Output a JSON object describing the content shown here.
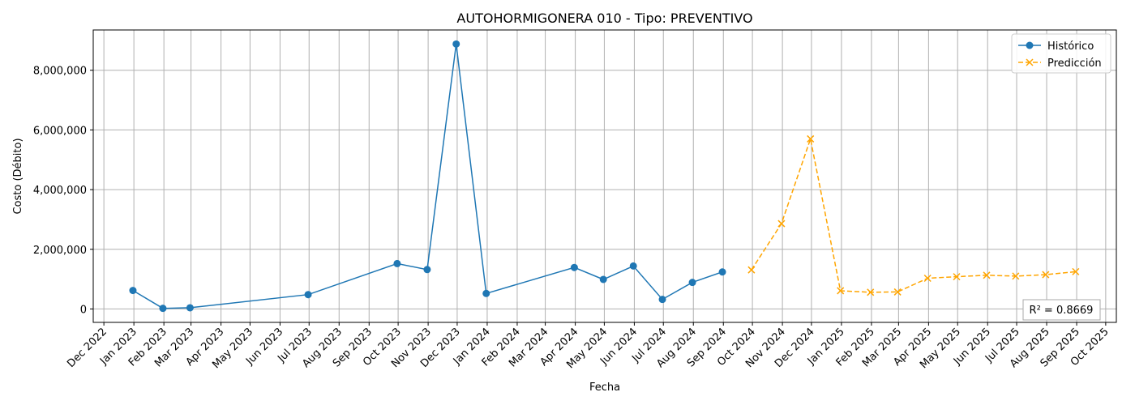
{
  "chart_data": {
    "type": "line",
    "title": "AUTOHORMIGONERA 010 - Tipo: PREVENTIVO",
    "xlabel": "Fecha",
    "ylabel": "Costo (Débito)",
    "x_range": [
      "2022-11-20",
      "2025-10-12"
    ],
    "ylim": [
      -450000,
      9350000
    ],
    "grid": true,
    "legend_position": "top-right",
    "x_ticks": [
      {
        "date": "2022-12-01",
        "label": "Dec 2022"
      },
      {
        "date": "2023-01-01",
        "label": "Jan 2023"
      },
      {
        "date": "2023-02-01",
        "label": "Feb 2023"
      },
      {
        "date": "2023-03-01",
        "label": "Mar 2023"
      },
      {
        "date": "2023-04-01",
        "label": "Apr 2023"
      },
      {
        "date": "2023-05-01",
        "label": "May 2023"
      },
      {
        "date": "2023-06-01",
        "label": "Jun 2023"
      },
      {
        "date": "2023-07-01",
        "label": "Jul 2023"
      },
      {
        "date": "2023-08-01",
        "label": "Aug 2023"
      },
      {
        "date": "2023-09-01",
        "label": "Sep 2023"
      },
      {
        "date": "2023-10-01",
        "label": "Oct 2023"
      },
      {
        "date": "2023-11-01",
        "label": "Nov 2023"
      },
      {
        "date": "2023-12-01",
        "label": "Dec 2023"
      },
      {
        "date": "2024-01-01",
        "label": "Jan 2024"
      },
      {
        "date": "2024-02-01",
        "label": "Feb 2024"
      },
      {
        "date": "2024-03-01",
        "label": "Mar 2024"
      },
      {
        "date": "2024-04-01",
        "label": "Apr 2024"
      },
      {
        "date": "2024-05-01",
        "label": "May 2024"
      },
      {
        "date": "2024-06-01",
        "label": "Jun 2024"
      },
      {
        "date": "2024-07-01",
        "label": "Jul 2024"
      },
      {
        "date": "2024-08-01",
        "label": "Aug 2024"
      },
      {
        "date": "2024-09-01",
        "label": "Sep 2024"
      },
      {
        "date": "2024-10-01",
        "label": "Oct 2024"
      },
      {
        "date": "2024-11-01",
        "label": "Nov 2024"
      },
      {
        "date": "2024-12-01",
        "label": "Dec 2024"
      },
      {
        "date": "2025-01-01",
        "label": "Jan 2025"
      },
      {
        "date": "2025-02-01",
        "label": "Feb 2025"
      },
      {
        "date": "2025-03-01",
        "label": "Mar 2025"
      },
      {
        "date": "2025-04-01",
        "label": "Apr 2025"
      },
      {
        "date": "2025-05-01",
        "label": "May 2025"
      },
      {
        "date": "2025-06-01",
        "label": "Jun 2025"
      },
      {
        "date": "2025-07-01",
        "label": "Jul 2025"
      },
      {
        "date": "2025-08-01",
        "label": "Aug 2025"
      },
      {
        "date": "2025-09-01",
        "label": "Sep 2025"
      },
      {
        "date": "2025-10-01",
        "label": "Oct 2025"
      }
    ],
    "y_ticks": [
      {
        "value": 0,
        "label": "0"
      },
      {
        "value": 2000000,
        "label": "2,000,000"
      },
      {
        "value": 4000000,
        "label": "4,000,000"
      },
      {
        "value": 6000000,
        "label": "6,000,000"
      },
      {
        "value": 8000000,
        "label": "8,000,000"
      }
    ],
    "series": [
      {
        "name": "Histórico",
        "color": "#1f77b4",
        "marker": "circle",
        "line_style": "solid",
        "points": [
          {
            "x": "2022-12-31",
            "y": 620000
          },
          {
            "x": "2023-01-31",
            "y": 20000
          },
          {
            "x": "2023-02-28",
            "y": 40000
          },
          {
            "x": "2023-06-30",
            "y": 480000
          },
          {
            "x": "2023-09-30",
            "y": 1520000
          },
          {
            "x": "2023-10-31",
            "y": 1320000
          },
          {
            "x": "2023-11-30",
            "y": 8880000
          },
          {
            "x": "2023-12-31",
            "y": 520000
          },
          {
            "x": "2024-03-31",
            "y": 1390000
          },
          {
            "x": "2024-04-30",
            "y": 990000
          },
          {
            "x": "2024-05-31",
            "y": 1440000
          },
          {
            "x": "2024-06-30",
            "y": 320000
          },
          {
            "x": "2024-07-31",
            "y": 890000
          },
          {
            "x": "2024-08-31",
            "y": 1240000
          }
        ]
      },
      {
        "name": "Predicción",
        "color": "#ffa500",
        "marker": "x",
        "line_style": "dashed",
        "points": [
          {
            "x": "2024-09-30",
            "y": 1310000
          },
          {
            "x": "2024-10-31",
            "y": 2860000
          },
          {
            "x": "2024-11-30",
            "y": 5700000
          },
          {
            "x": "2024-12-31",
            "y": 610000
          },
          {
            "x": "2025-01-31",
            "y": 560000
          },
          {
            "x": "2025-02-28",
            "y": 570000
          },
          {
            "x": "2025-03-31",
            "y": 1030000
          },
          {
            "x": "2025-04-30",
            "y": 1080000
          },
          {
            "x": "2025-05-31",
            "y": 1130000
          },
          {
            "x": "2025-06-30",
            "y": 1100000
          },
          {
            "x": "2025-07-31",
            "y": 1150000
          },
          {
            "x": "2025-08-31",
            "y": 1250000
          }
        ]
      }
    ],
    "annotations": [
      {
        "text": "R² = 0.8669",
        "position": "bottom-right"
      }
    ]
  }
}
